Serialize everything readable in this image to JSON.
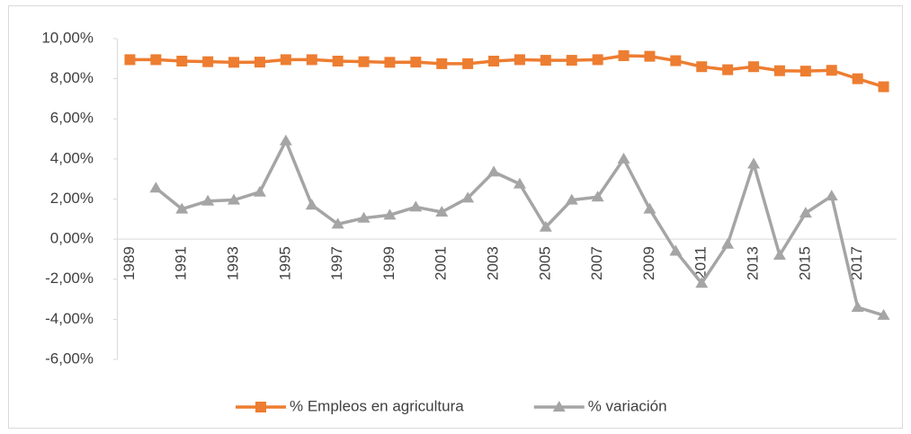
{
  "chart_data": {
    "type": "line",
    "categories": [
      "1989",
      null,
      "1991",
      null,
      "1993",
      null,
      "1995",
      null,
      "1997",
      null,
      "1999",
      null,
      "2001",
      null,
      "2003",
      null,
      "2005",
      null,
      "2007",
      null,
      "2009",
      null,
      "2011",
      null,
      "2013",
      null,
      "2015",
      null,
      "2017",
      null
    ],
    "series": [
      {
        "name": "% Empleos en agricultura",
        "color": "#ed7d31",
        "marker": "square",
        "values": [
          8.95,
          8.95,
          8.88,
          8.85,
          8.82,
          8.83,
          8.95,
          8.95,
          8.88,
          8.85,
          8.82,
          8.83,
          8.75,
          8.75,
          8.88,
          8.95,
          8.92,
          8.92,
          8.95,
          9.15,
          9.12,
          8.9,
          8.6,
          8.45,
          8.6,
          8.4,
          8.38,
          8.42,
          8.0,
          7.6
        ]
      },
      {
        "name": "% variación",
        "color": "#a5a5a5",
        "marker": "triangle",
        "values": [
          null,
          2.55,
          1.5,
          1.9,
          1.95,
          2.35,
          4.9,
          1.7,
          0.75,
          1.05,
          1.2,
          1.6,
          1.35,
          2.05,
          3.35,
          2.75,
          0.6,
          1.95,
          2.1,
          4.0,
          1.5,
          -0.6,
          -2.2,
          -0.25,
          3.75,
          -0.8,
          1.3,
          2.15,
          -3.4,
          -3.8
        ]
      }
    ],
    "ylim": [
      -6,
      10
    ],
    "yticks": [
      {
        "value": -6,
        "label": "-6,00%"
      },
      {
        "value": -4,
        "label": "-4,00%"
      },
      {
        "value": -2,
        "label": "-2,00%"
      },
      {
        "value": 0,
        "label": "0,00%"
      },
      {
        "value": 2,
        "label": "2,00%"
      },
      {
        "value": 4,
        "label": "4,00%"
      },
      {
        "value": 6,
        "label": "6,00%"
      },
      {
        "value": 8,
        "label": "8,00%"
      },
      {
        "value": 10,
        "label": "10,00%"
      }
    ],
    "grid": false,
    "legend": "bottom"
  }
}
